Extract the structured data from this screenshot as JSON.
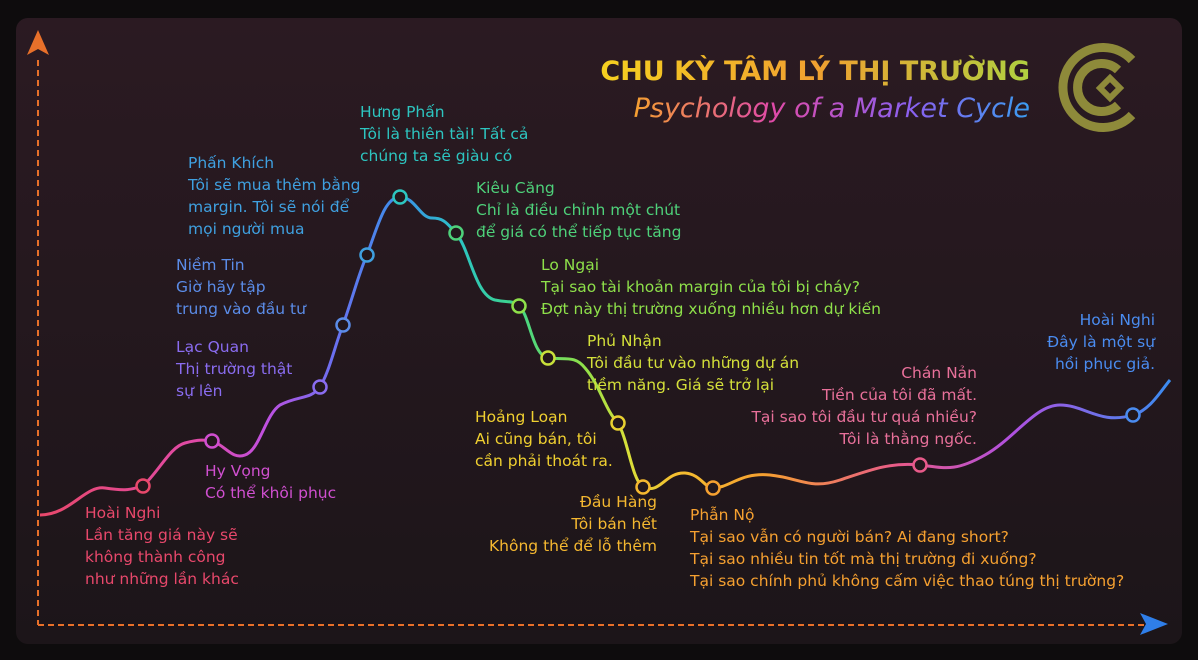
{
  "header": {
    "title": "CHU KỲ TÂM LÝ THỊ TRƯỜNG",
    "subtitle": "Psychology of a Market Cycle"
  },
  "stages": [
    {
      "name": "Hoài Nghi",
      "lines": [
        "Lần tăng giá này sẽ",
        "không thành công",
        "như những lần khác"
      ]
    },
    {
      "name": "Hy Vọng",
      "lines": [
        "Có thể khôi phục"
      ]
    },
    {
      "name": "Lạc Quan",
      "lines": [
        "Thị trường thật",
        "sự lên"
      ]
    },
    {
      "name": "Niềm Tin",
      "lines": [
        "Giờ hãy tập",
        "trung vào đầu tư"
      ]
    },
    {
      "name": "Phấn Khích",
      "lines": [
        "Tôi sẽ mua thêm bằng",
        "margin. Tôi sẽ nói để",
        "mọi người mua"
      ]
    },
    {
      "name": "Hưng Phấn",
      "lines": [
        "Tôi là thiên tài! Tất cả",
        "chúng ta sẽ giàu có"
      ]
    },
    {
      "name": "Kiêu Căng",
      "lines": [
        "Chỉ là điều chỉnh một chút",
        "để giá có thể tiếp tục tăng"
      ]
    },
    {
      "name": "Lo Ngại",
      "lines": [
        "Tại sao tài khoản margin của tôi bị cháy?",
        "Đợt này thị trường xuống nhiều hơn dự kiến"
      ]
    },
    {
      "name": "Phủ Nhận",
      "lines": [
        "Tôi đầu tư vào những dự án",
        "tiềm năng. Giá sẽ trở lại"
      ]
    },
    {
      "name": "Hoảng Loạn",
      "lines": [
        "Ai cũng bán, tôi",
        "cần phải thoát ra."
      ]
    },
    {
      "name": "Đầu Hàng",
      "lines": [
        "Tôi bán hết",
        "Không thể để lỗ thêm"
      ]
    },
    {
      "name": "Phẫn Nộ",
      "lines": [
        "Tại sao vẫn có người bán? Ai đang short?",
        "Tại sao nhiều tin tốt mà thị trường đi xuống?",
        "Tại sao chính phủ không cấm việc thao túng thị trường?"
      ]
    },
    {
      "name": "Chán Nản",
      "lines": [
        "Tiền của tôi đã mất.",
        "Tại sao tôi đầu tư quá nhiều?",
        "Tôi là thằng ngốc."
      ]
    },
    {
      "name": "Hoài Nghi",
      "lines": [
        "Đây là một sự",
        "hồi phục giả."
      ]
    }
  ]
}
